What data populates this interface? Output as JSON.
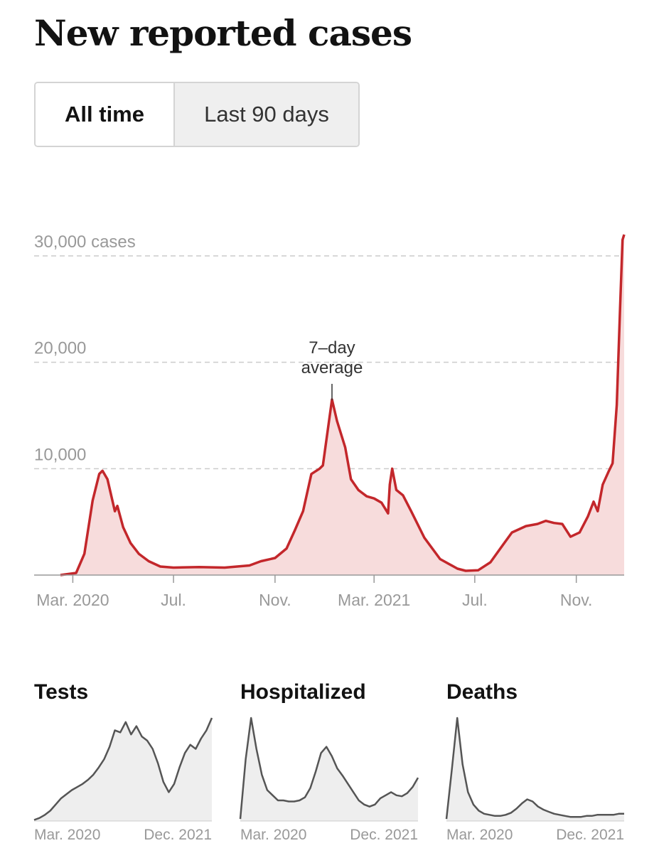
{
  "title": "New reported cases",
  "toggle": {
    "all_time": "All time",
    "last_90": "Last 90 days",
    "selected": "All time"
  },
  "colors": {
    "line": "#c3272b",
    "area": "#f7dcdc",
    "mini_line": "#555555",
    "mini_area": "#eeeeee",
    "grid": "#cccccc"
  },
  "chart_data": [
    {
      "type": "area",
      "title": "New reported cases",
      "annotation": [
        "7–day",
        "average"
      ],
      "annotation_at": "2021-01-09",
      "y_tick_labels": [
        "10,000",
        "20,000",
        "30,000 cases"
      ],
      "y_ticks": [
        10000,
        20000,
        30000
      ],
      "x_tick_labels": [
        "Mar. 2020",
        "Jul.",
        "Nov.",
        "Mar. 2021",
        "Jul.",
        "Nov."
      ],
      "x_ticks": [
        "2020-03-01",
        "2020-07-01",
        "2020-11-01",
        "2021-03-01",
        "2021-07-01",
        "2021-11-01"
      ],
      "xlim": [
        "2020-02-15",
        "2021-12-29"
      ],
      "ylim": [
        0,
        32000
      ],
      "series": [
        {
          "values": [
            [
              "2020-02-15",
              0
            ],
            [
              "2020-03-05",
              200
            ],
            [
              "2020-03-15",
              2000
            ],
            [
              "2020-03-25",
              7000
            ],
            [
              "2020-04-02",
              9500
            ],
            [
              "2020-04-06",
              9800
            ],
            [
              "2020-04-12",
              9000
            ],
            [
              "2020-04-18",
              7000
            ],
            [
              "2020-04-21",
              6000
            ],
            [
              "2020-04-24",
              6500
            ],
            [
              "2020-05-01",
              4500
            ],
            [
              "2020-05-10",
              3000
            ],
            [
              "2020-05-20",
              2000
            ],
            [
              "2020-06-01",
              1300
            ],
            [
              "2020-06-15",
              800
            ],
            [
              "2020-07-01",
              700
            ],
            [
              "2020-08-01",
              750
            ],
            [
              "2020-09-01",
              700
            ],
            [
              "2020-10-01",
              900
            ],
            [
              "2020-10-15",
              1300
            ],
            [
              "2020-11-01",
              1600
            ],
            [
              "2020-11-15",
              2500
            ],
            [
              "2020-11-25",
              4200
            ],
            [
              "2020-12-05",
              6000
            ],
            [
              "2020-12-15",
              9500
            ],
            [
              "2020-12-25",
              10000
            ],
            [
              "2020-12-29",
              10300
            ],
            [
              "2021-01-01",
              12000
            ],
            [
              "2021-01-09",
              16500
            ],
            [
              "2021-01-15",
              14500
            ],
            [
              "2021-01-25",
              12000
            ],
            [
              "2021-02-01",
              9000
            ],
            [
              "2021-02-10",
              8000
            ],
            [
              "2021-02-20",
              7400
            ],
            [
              "2021-03-01",
              7200
            ],
            [
              "2021-03-10",
              6800
            ],
            [
              "2021-03-18",
              5800
            ],
            [
              "2021-03-20",
              8500
            ],
            [
              "2021-03-23",
              10000
            ],
            [
              "2021-03-28",
              8000
            ],
            [
              "2021-04-05",
              7500
            ],
            [
              "2021-04-15",
              6000
            ],
            [
              "2021-05-01",
              3500
            ],
            [
              "2021-05-20",
              1500
            ],
            [
              "2021-06-10",
              600
            ],
            [
              "2021-06-20",
              400
            ],
            [
              "2021-07-05",
              450
            ],
            [
              "2021-07-20",
              1200
            ],
            [
              "2021-08-01",
              2500
            ],
            [
              "2021-08-15",
              4000
            ],
            [
              "2021-09-01",
              4600
            ],
            [
              "2021-09-15",
              4800
            ],
            [
              "2021-09-25",
              5100
            ],
            [
              "2021-10-05",
              4900
            ],
            [
              "2021-10-15",
              4800
            ],
            [
              "2021-10-25",
              3600
            ],
            [
              "2021-11-05",
              4000
            ],
            [
              "2021-11-15",
              5500
            ],
            [
              "2021-11-22",
              6900
            ],
            [
              "2021-11-27",
              6000
            ],
            [
              "2021-12-03",
              8500
            ],
            [
              "2021-12-10",
              9700
            ],
            [
              "2021-12-15",
              10500
            ],
            [
              "2021-12-20",
              16000
            ],
            [
              "2021-12-24",
              25000
            ],
            [
              "2021-12-27",
              31500
            ],
            [
              "2021-12-29",
              32000
            ]
          ]
        }
      ]
    },
    {
      "type": "area",
      "title": "Tests",
      "x_tick_labels": [
        "Mar. 2020",
        "Dec. 2021"
      ],
      "series": [
        {
          "values": [
            1,
            3,
            6,
            10,
            16,
            22,
            26,
            30,
            33,
            36,
            40,
            45,
            52,
            60,
            72,
            88,
            86,
            96,
            84,
            92,
            82,
            78,
            70,
            56,
            38,
            28,
            36,
            52,
            66,
            74,
            70,
            80,
            88,
            100
          ]
        }
      ]
    },
    {
      "type": "area",
      "title": "Hospitalized",
      "x_tick_labels": [
        "Mar. 2020",
        "Dec. 2021"
      ],
      "series": [
        {
          "values": [
            2,
            60,
            100,
            70,
            45,
            30,
            25,
            20,
            20,
            19,
            19,
            20,
            23,
            32,
            48,
            66,
            72,
            63,
            51,
            44,
            36,
            28,
            20,
            16,
            14,
            16,
            22,
            25,
            28,
            25,
            24,
            27,
            33,
            42
          ]
        }
      ]
    },
    {
      "type": "area",
      "title": "Deaths",
      "x_tick_labels": [
        "Mar. 2020",
        "Dec. 2021"
      ],
      "series": [
        {
          "values": [
            2,
            50,
            100,
            55,
            28,
            16,
            10,
            7,
            6,
            5,
            5,
            6,
            8,
            12,
            17,
            21,
            19,
            14,
            11,
            9,
            7,
            6,
            5,
            4,
            4,
            4,
            5,
            5,
            6,
            6,
            6,
            6,
            7,
            7
          ]
        }
      ]
    }
  ]
}
